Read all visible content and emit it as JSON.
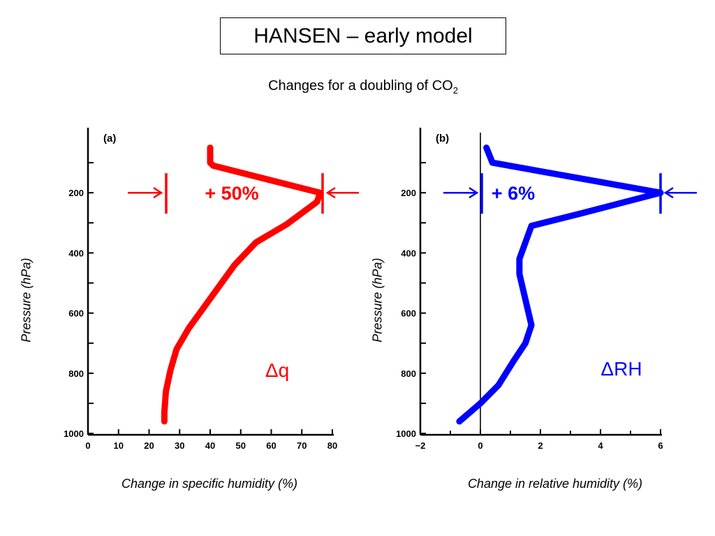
{
  "slide": {
    "title": "HANSEN – early model",
    "subtitle_text": "Changes for a doubling of CO",
    "subtitle_subscript": "2"
  },
  "colors": {
    "red": "#ff0000",
    "blue": "#0000ff",
    "axis": "#000000"
  },
  "chart_data": [
    {
      "type": "line",
      "panel_label": "(a)",
      "xlabel": "Change in specific humidity (%)",
      "ylabel": "Pressure (hPa)",
      "xlim": [
        0,
        80
      ],
      "ylim": [
        1000,
        0
      ],
      "xticks": [
        0,
        10,
        20,
        30,
        40,
        50,
        60,
        70,
        80
      ],
      "yticks": [
        200,
        400,
        600,
        800,
        1000
      ],
      "color": "#ff0000",
      "series": [
        {
          "name": "Δq",
          "x": [
            40,
            40,
            41,
            76,
            75,
            65,
            55,
            48,
            43,
            38,
            33,
            29,
            27,
            25.5,
            25,
            25
          ],
          "y": [
            50,
            100,
            110,
            200,
            230,
            305,
            365,
            440,
            510,
            580,
            650,
            720,
            790,
            860,
            930,
            960
          ]
        }
      ],
      "annotation": {
        "text": "+ 50%",
        "at_pressure": 200,
        "from": 26,
        "to": 76
      },
      "series_label": "Δq"
    },
    {
      "type": "line",
      "panel_label": "(b)",
      "xlabel": "Change in relative humidity (%)",
      "ylabel": "Pressure (hPa)",
      "xlim": [
        -2,
        6
      ],
      "ylim": [
        1000,
        0
      ],
      "xticks": [
        -2,
        0,
        2,
        4,
        6
      ],
      "xticklabels": [
        "−2",
        "0",
        "2",
        "4",
        "6"
      ],
      "yticks": [
        200,
        400,
        600,
        800,
        1000
      ],
      "zero_line": 0,
      "color": "#0000ff",
      "series": [
        {
          "name": "ΔRH",
          "x": [
            0.2,
            0.4,
            6,
            3.3,
            1.7,
            1.3,
            1.3,
            1.7,
            1.5,
            1.1,
            0.6,
            0,
            -0.7
          ],
          "y": [
            50,
            100,
            200,
            270,
            310,
            420,
            470,
            640,
            700,
            760,
            840,
            900,
            960
          ]
        }
      ],
      "annotation": {
        "text": "+ 6%",
        "at_pressure": 200,
        "from": 0.1,
        "to": 6
      },
      "series_label": "ΔRH"
    }
  ]
}
